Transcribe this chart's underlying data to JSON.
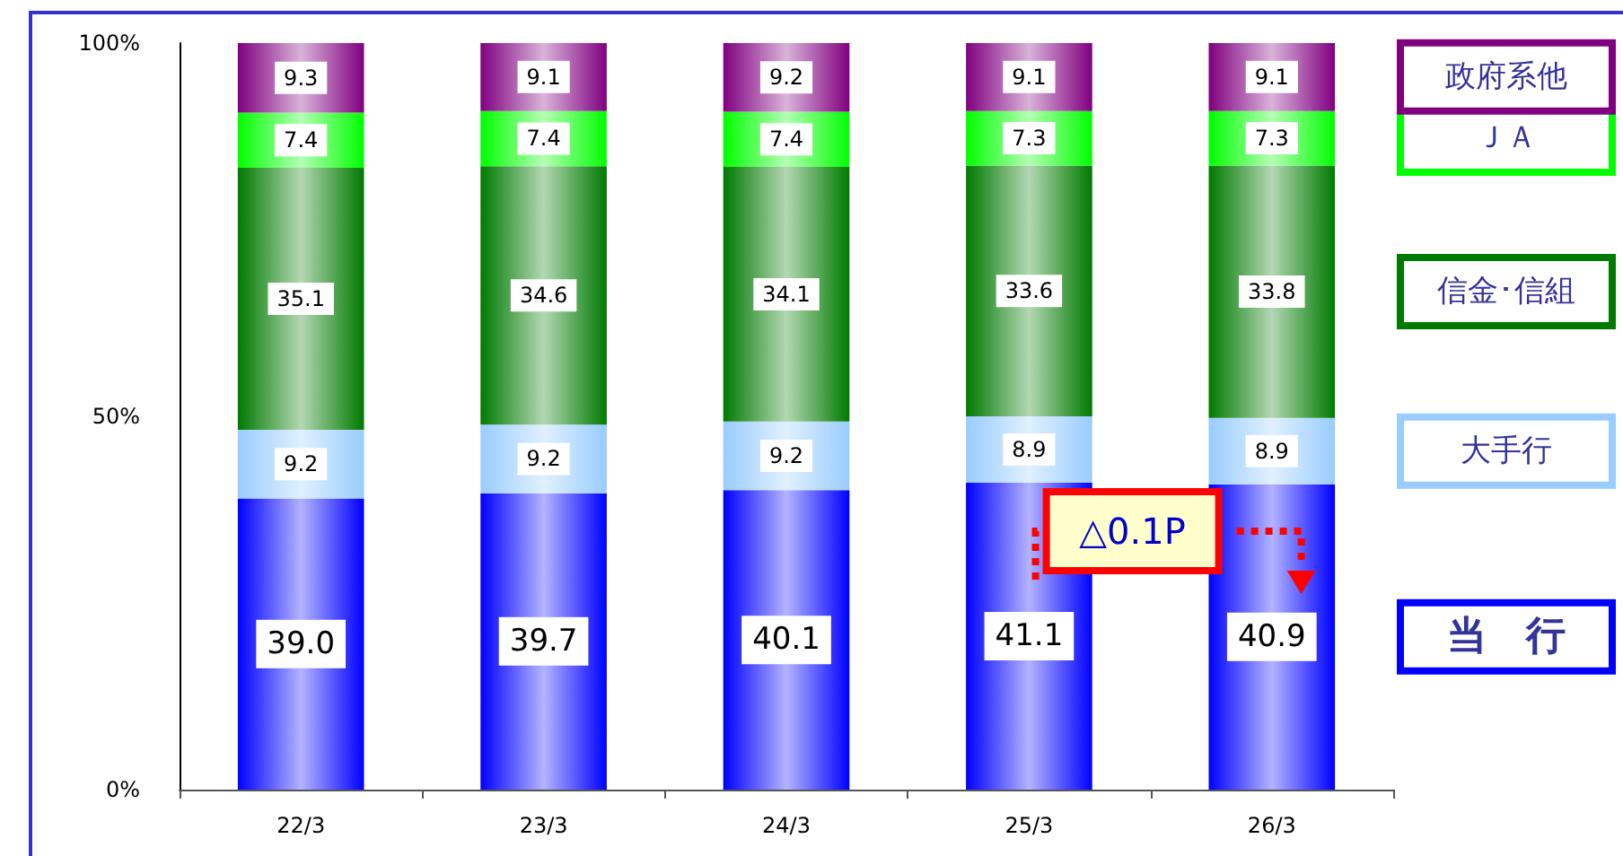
{
  "chart_data": {
    "type": "bar",
    "stacked": true,
    "categories": [
      "22/3",
      "23/3",
      "24/3",
      "25/3",
      "26/3"
    ],
    "series": [
      {
        "name": "当　行",
        "color": "#0000ff",
        "values": [
          39.0,
          39.7,
          40.1,
          41.1,
          40.9
        ],
        "value_labels": [
          "39.0",
          "39.7",
          "40.1",
          "41.1",
          "40.9"
        ]
      },
      {
        "name": "大手行",
        "color": "#99ccff",
        "values": [
          9.2,
          9.2,
          9.2,
          8.9,
          8.9
        ],
        "value_labels": [
          "9.2",
          "9.2",
          "9.2",
          "8.9",
          "8.9"
        ]
      },
      {
        "name": "信金･信組",
        "color": "#007a00",
        "values": [
          35.1,
          34.6,
          34.1,
          33.6,
          33.8
        ],
        "value_labels": [
          "35.1",
          "34.6",
          "34.1",
          "33.6",
          "33.8"
        ]
      },
      {
        "name": "ＪＡ",
        "color": "#00ff00",
        "values": [
          7.4,
          7.4,
          7.4,
          7.3,
          7.3
        ],
        "value_labels": [
          "7.4",
          "7.4",
          "7.4",
          "7.3",
          "7.3"
        ]
      },
      {
        "name": "政府系他",
        "color": "#800080",
        "values": [
          9.3,
          9.1,
          9.2,
          9.1,
          9.1
        ],
        "value_labels": [
          "9.3",
          "9.1",
          "9.2",
          "9.1",
          "9.1"
        ]
      }
    ],
    "ylim": [
      0,
      100
    ],
    "yticks": [
      {
        "value": 0,
        "label": "0%"
      },
      {
        "value": 50,
        "label": "50%"
      },
      {
        "value": 100,
        "label": "100%"
      }
    ],
    "grid": false,
    "legend": "right",
    "annotations": [
      "△0.1P"
    ]
  }
}
